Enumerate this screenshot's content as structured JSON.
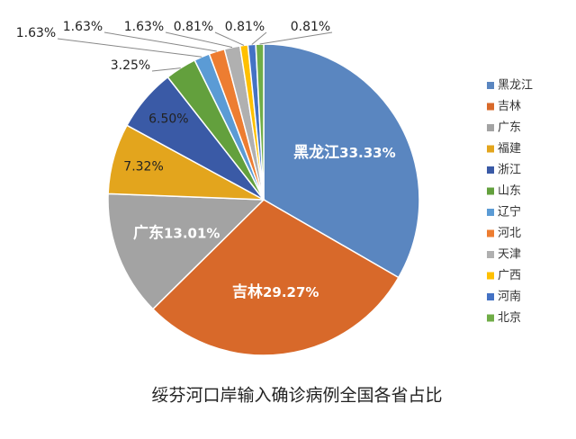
{
  "chart_data": {
    "type": "pie",
    "title": "绥芬河口岸输入确诊病例全国各省占比",
    "categories": [
      "黑龙江",
      "吉林",
      "广东",
      "福建",
      "浙江",
      "山东",
      "辽宁",
      "河北",
      "天津",
      "广西",
      "河南",
      "北京"
    ],
    "values": [
      33.33,
      29.27,
      13.01,
      7.32,
      6.5,
      3.25,
      1.63,
      1.63,
      1.63,
      0.81,
      0.81,
      0.81
    ],
    "value_labels": [
      "33.33%",
      "29.27%",
      "13.01%",
      "7.32%",
      "6.50%",
      "3.25%",
      "1.63%",
      "1.63%",
      "1.63%",
      "0.81%",
      "0.81%",
      "0.81%"
    ],
    "colors": [
      "#5a86c0",
      "#d8692a",
      "#a3a3a3",
      "#e3a51d",
      "#3a5aa6",
      "#63a03d",
      "#5b9bd5",
      "#ed7d31",
      "#b0b0b0",
      "#ffc000",
      "#4472c4",
      "#70ad47"
    ],
    "legend": "right"
  }
}
